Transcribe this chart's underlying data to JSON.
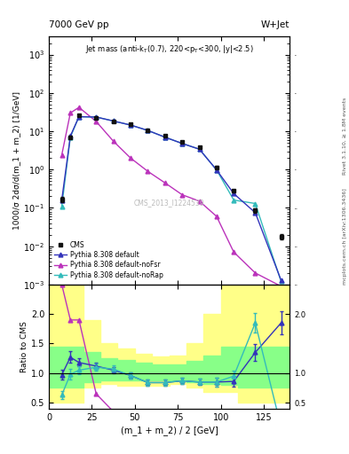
{
  "title_left": "7000 GeV pp",
  "title_right": "W+Jet",
  "right_label1": "Rivet 3.1.10, ≥ 1.8M events",
  "right_label2": "mcplots.cern.ch [arXiv:1306.3436]",
  "cms_label": "CMS_2013_I1224539",
  "ylabel_main": "1000/σ 2dσ/d(m_1 + m_2) [1/GeV]",
  "ylabel_ratio": "Ratio to CMS",
  "xlabel": "(m_1 + m_2) / 2 [GeV]",
  "cms_x": [
    7.5,
    12.5,
    17.5,
    27.5,
    37.5,
    47.5,
    57.5,
    67.5,
    77.5,
    87.5,
    97.5,
    107.5,
    120.0,
    135.0
  ],
  "cms_y": [
    0.165,
    7.0,
    26.0,
    22.0,
    18.0,
    15.0,
    10.5,
    7.5,
    5.2,
    3.8,
    1.15,
    0.28,
    0.085,
    0.018
  ],
  "cms_yerr": [
    0.025,
    0.5,
    1.5,
    1.2,
    1.0,
    0.8,
    0.6,
    0.4,
    0.3,
    0.22,
    0.08,
    0.025,
    0.01,
    0.003
  ],
  "default_x": [
    7.5,
    12.5,
    17.5,
    27.5,
    37.5,
    47.5,
    57.5,
    67.5,
    77.5,
    87.5,
    97.5,
    107.5,
    120.0,
    135.0
  ],
  "default_y": [
    0.16,
    7.5,
    24.0,
    23.5,
    18.5,
    14.5,
    10.5,
    7.0,
    4.8,
    3.4,
    0.98,
    0.235,
    0.075,
    0.0013
  ],
  "noFsr_x": [
    7.5,
    12.5,
    17.5,
    27.5,
    37.5,
    47.5,
    57.5,
    67.5,
    77.5,
    87.5,
    97.5,
    107.5,
    120.0,
    135.0
  ],
  "noFsr_y": [
    2.4,
    30.0,
    42.0,
    18.0,
    5.5,
    2.0,
    0.9,
    0.45,
    0.22,
    0.15,
    0.06,
    0.007,
    0.002,
    0.0009
  ],
  "noRap_x": [
    7.5,
    12.5,
    17.5,
    27.5,
    37.5,
    47.5,
    57.5,
    67.5,
    77.5,
    87.5,
    97.5,
    107.5,
    120.0,
    135.0
  ],
  "noRap_y": [
    0.11,
    7.0,
    24.0,
    23.5,
    18.5,
    14.5,
    10.5,
    7.0,
    4.8,
    3.4,
    0.98,
    0.16,
    0.13,
    0.0012
  ],
  "default_ratio": [
    0.97,
    1.27,
    1.18,
    1.12,
    1.05,
    0.96,
    0.84,
    0.84,
    0.87,
    0.85,
    0.85,
    0.86,
    1.35,
    1.85
  ],
  "default_ratio_err": [
    0.08,
    0.1,
    0.07,
    0.055,
    0.055,
    0.055,
    0.05,
    0.05,
    0.05,
    0.055,
    0.075,
    0.09,
    0.14,
    0.2
  ],
  "noFsr_ratio_x": [
    7.5,
    12.5,
    17.5,
    27.5,
    37.5
  ],
  "noFsr_ratio": [
    2.5,
    1.9,
    1.9,
    0.65,
    0.35
  ],
  "noRap_ratio": [
    0.63,
    0.98,
    1.05,
    1.1,
    1.07,
    0.96,
    0.84,
    0.84,
    0.87,
    0.85,
    0.85,
    0.95,
    1.85,
    0.09
  ],
  "noRap_ratio_err": [
    0.07,
    0.09,
    0.07,
    0.055,
    0.055,
    0.055,
    0.05,
    0.05,
    0.05,
    0.055,
    0.075,
    0.09,
    0.17,
    0.07
  ],
  "band_edges": [
    0,
    10,
    20,
    30,
    40,
    50,
    60,
    70,
    80,
    90,
    100,
    110,
    130,
    145
  ],
  "yellow_low": [
    0.5,
    0.5,
    0.75,
    0.82,
    0.78,
    0.78,
    0.78,
    0.82,
    0.75,
    0.68,
    0.68,
    0.5,
    0.5,
    0.5
  ],
  "yellow_high": [
    2.5,
    2.5,
    1.9,
    1.5,
    1.42,
    1.32,
    1.28,
    1.3,
    1.5,
    2.0,
    2.5,
    2.5,
    2.5,
    2.5
  ],
  "green_low": [
    0.75,
    0.75,
    0.85,
    0.88,
    0.87,
    0.87,
    0.87,
    0.88,
    0.85,
    0.82,
    0.8,
    0.75,
    0.75,
    0.75
  ],
  "green_high": [
    1.45,
    1.45,
    1.35,
    1.25,
    1.22,
    1.18,
    1.15,
    1.15,
    1.2,
    1.3,
    1.45,
    1.45,
    1.45,
    1.45
  ],
  "color_default": "#3333bb",
  "color_noFsr": "#bb33bb",
  "color_noRap": "#33bbbb",
  "color_cms": "#111111",
  "xlim": [
    0,
    140
  ],
  "ylim_main_log": [
    0.001,
    3000.0
  ],
  "ylim_ratio": [
    0.4,
    2.5
  ]
}
